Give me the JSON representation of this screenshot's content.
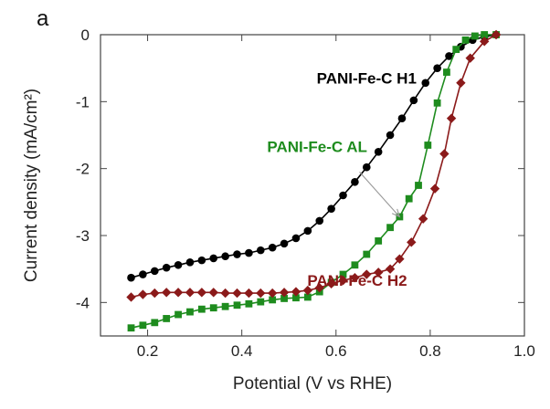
{
  "chart_data": {
    "type": "line",
    "panel_label": "a",
    "xlabel": "Potential (V vs RHE)",
    "ylabel": "Current density (mA/cm²)",
    "xlim": [
      0.1,
      1.0
    ],
    "ylim": [
      -4.5,
      0
    ],
    "xticks": [
      "0.2",
      "0.4",
      "0.6",
      "0.8",
      "1.0"
    ],
    "yticks": [
      "0",
      "-1",
      "-2",
      "-3",
      "-4"
    ],
    "xtick_values": [
      0.2,
      0.4,
      0.6,
      0.8,
      1.0
    ],
    "ytick_values": [
      0,
      -1,
      -2,
      -3,
      -4
    ],
    "grid": false,
    "series": [
      {
        "name": "PANI-Fe-C H1",
        "color": "#000000",
        "marker": "circle",
        "label_pos": [
          0.665,
          -0.73
        ],
        "x": [
          0.165,
          0.19,
          0.215,
          0.24,
          0.265,
          0.29,
          0.315,
          0.34,
          0.365,
          0.39,
          0.415,
          0.44,
          0.465,
          0.49,
          0.515,
          0.54,
          0.565,
          0.59,
          0.615,
          0.64,
          0.665,
          0.69,
          0.715,
          0.74,
          0.765,
          0.79,
          0.815,
          0.84,
          0.865,
          0.89,
          0.915,
          0.94
        ],
        "y": [
          -3.63,
          -3.58,
          -3.53,
          -3.48,
          -3.44,
          -3.4,
          -3.37,
          -3.34,
          -3.31,
          -3.28,
          -3.26,
          -3.22,
          -3.18,
          -3.12,
          -3.04,
          -2.93,
          -2.78,
          -2.6,
          -2.4,
          -2.2,
          -1.98,
          -1.75,
          -1.5,
          -1.25,
          -0.98,
          -0.72,
          -0.5,
          -0.32,
          -0.18,
          -0.08,
          -0.03,
          0.0
        ]
      },
      {
        "name": "PANI-Fe-C AL",
        "color": "#1e8c1e",
        "marker": "square",
        "label_pos": [
          0.56,
          -1.75
        ],
        "annotation_arrow": {
          "from": [
            0.65,
            -2.05
          ],
          "to": [
            0.735,
            -2.72
          ]
        },
        "x": [
          0.165,
          0.19,
          0.215,
          0.24,
          0.265,
          0.29,
          0.315,
          0.34,
          0.365,
          0.39,
          0.415,
          0.44,
          0.465,
          0.49,
          0.515,
          0.54,
          0.565,
          0.59,
          0.615,
          0.64,
          0.665,
          0.69,
          0.715,
          0.735,
          0.755,
          0.775,
          0.795,
          0.815,
          0.835,
          0.855,
          0.875,
          0.895,
          0.915,
          0.94
        ],
        "y": [
          -4.38,
          -4.34,
          -4.3,
          -4.24,
          -4.18,
          -4.14,
          -4.1,
          -4.08,
          -4.06,
          -4.04,
          -4.02,
          -3.99,
          -3.96,
          -3.94,
          -3.93,
          -3.92,
          -3.84,
          -3.7,
          -3.58,
          -3.44,
          -3.28,
          -3.08,
          -2.88,
          -2.72,
          -2.45,
          -2.25,
          -1.65,
          -1.02,
          -0.56,
          -0.22,
          -0.08,
          -0.02,
          0.0,
          0.0
        ]
      },
      {
        "name": "PANI-Fe-C H2",
        "color": "#8b1a1a",
        "marker": "diamond",
        "label_pos": [
          0.645,
          -3.75
        ],
        "x": [
          0.165,
          0.19,
          0.215,
          0.24,
          0.265,
          0.29,
          0.315,
          0.34,
          0.365,
          0.39,
          0.415,
          0.44,
          0.465,
          0.49,
          0.515,
          0.54,
          0.565,
          0.59,
          0.615,
          0.64,
          0.665,
          0.69,
          0.715,
          0.735,
          0.76,
          0.785,
          0.81,
          0.83,
          0.845,
          0.865,
          0.885,
          0.915,
          0.94
        ],
        "y": [
          -3.92,
          -3.88,
          -3.86,
          -3.85,
          -3.85,
          -3.85,
          -3.85,
          -3.85,
          -3.86,
          -3.86,
          -3.86,
          -3.86,
          -3.86,
          -3.85,
          -3.84,
          -3.82,
          -3.78,
          -3.72,
          -3.67,
          -3.63,
          -3.58,
          -3.55,
          -3.5,
          -3.35,
          -3.1,
          -2.75,
          -2.3,
          -1.78,
          -1.25,
          -0.72,
          -0.35,
          -0.1,
          0.0
        ]
      }
    ]
  }
}
